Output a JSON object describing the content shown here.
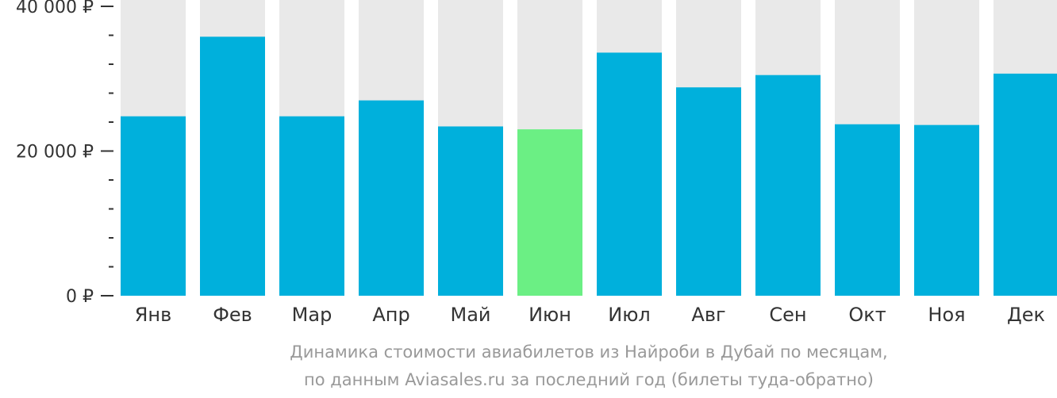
{
  "chart_data": {
    "type": "bar",
    "categories": [
      "Янв",
      "Фев",
      "Мар",
      "Апр",
      "Май",
      "Июн",
      "Июл",
      "Авг",
      "Сен",
      "Окт",
      "Ноя",
      "Дек"
    ],
    "series": [
      {
        "values": [
          24800,
          35800,
          24800,
          27000,
          23400,
          23000,
          33600,
          28800,
          30500,
          23700,
          23600,
          30700
        ]
      }
    ],
    "highlight_index": 5,
    "ylim": [
      0,
      40000
    ],
    "yticks": [
      {
        "value": 0,
        "label": "0 ₽"
      },
      {
        "value": 20000,
        "label": "20 000 ₽"
      },
      {
        "value": 40000,
        "label": "40 000 ₽"
      }
    ],
    "minor_step": 4000,
    "grid": false,
    "colors": {
      "bar": "#00b0dc",
      "highlight": "#6bef84",
      "background_bar": "#e9e9e9",
      "axis": "#333333"
    },
    "caption_line1": "Динамика стоимости авиабилетов из Найроби в Дубай по месяцам,",
    "caption_line2": "по данным Aviasales.ru за последний год (билеты туда-обратно)"
  }
}
